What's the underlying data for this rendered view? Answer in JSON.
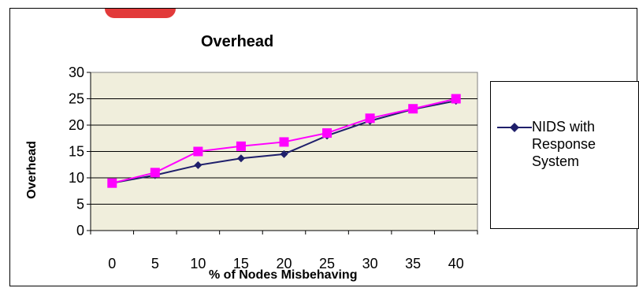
{
  "chart_data": {
    "type": "line",
    "title": "Overhead",
    "xlabel": "% of Nodes Misbehaving",
    "ylabel": "Overhead",
    "categories": [
      "0",
      "5",
      "10",
      "15",
      "20",
      "25",
      "30",
      "35",
      "40"
    ],
    "yticks": [
      "0",
      "5",
      "10",
      "15",
      "20",
      "25",
      "30"
    ],
    "ylim": [
      0,
      30
    ],
    "grid": true,
    "legend_position": "right",
    "series": [
      {
        "name": "NIDS with Response System",
        "color": "#1f1f6b",
        "marker": "diamond",
        "values": [
          9,
          10.5,
          12.4,
          13.7,
          14.5,
          18,
          20.8,
          23,
          24.6
        ]
      },
      {
        "color": "#ff00ff",
        "marker": "square",
        "values": [
          9,
          11,
          15,
          16,
          16.8,
          18.5,
          21.3,
          23.1,
          25
        ]
      }
    ]
  },
  "colors": {
    "plot_background": "#f0eedc",
    "frame": "#000000"
  }
}
